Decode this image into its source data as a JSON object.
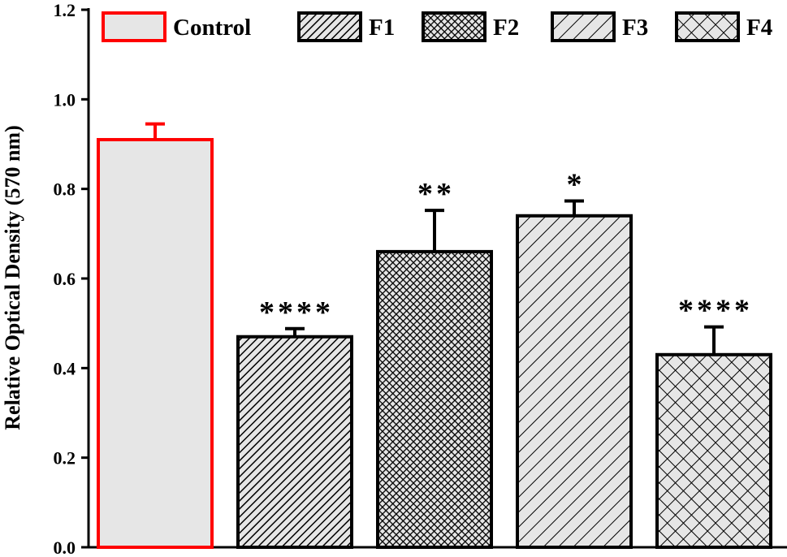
{
  "chart_data": {
    "type": "bar",
    "title": "",
    "xlabel": "",
    "ylabel": "Relative Optical Density (570 nm)",
    "ylim": [
      0.0,
      1.2
    ],
    "yticks": [
      0.0,
      0.2,
      0.4,
      0.6,
      0.8,
      1.0,
      1.2
    ],
    "ytick_labels": [
      "0.0",
      "0.2",
      "0.4",
      "0.6",
      "0.8",
      "1.0",
      "1.2"
    ],
    "grid": false,
    "legend_position": "top",
    "categories": [
      "Control",
      "F1",
      "F2",
      "F3",
      "F4"
    ],
    "values": [
      0.91,
      0.47,
      0.66,
      0.74,
      0.43
    ],
    "error": [
      0.035,
      0.018,
      0.092,
      0.033,
      0.062
    ],
    "significance": [
      "",
      "****",
      "**",
      "*",
      "****"
    ],
    "fill_patterns": [
      "solid",
      "diagonal-dense",
      "checker-dense",
      "diagonal-wide",
      "crosshatch"
    ],
    "colors": {
      "control_edge": "#ff0000",
      "control_fill": "#e6e6e6",
      "edge": "#000000",
      "fill": "#e6e6e6",
      "pattern": "#000000"
    }
  }
}
